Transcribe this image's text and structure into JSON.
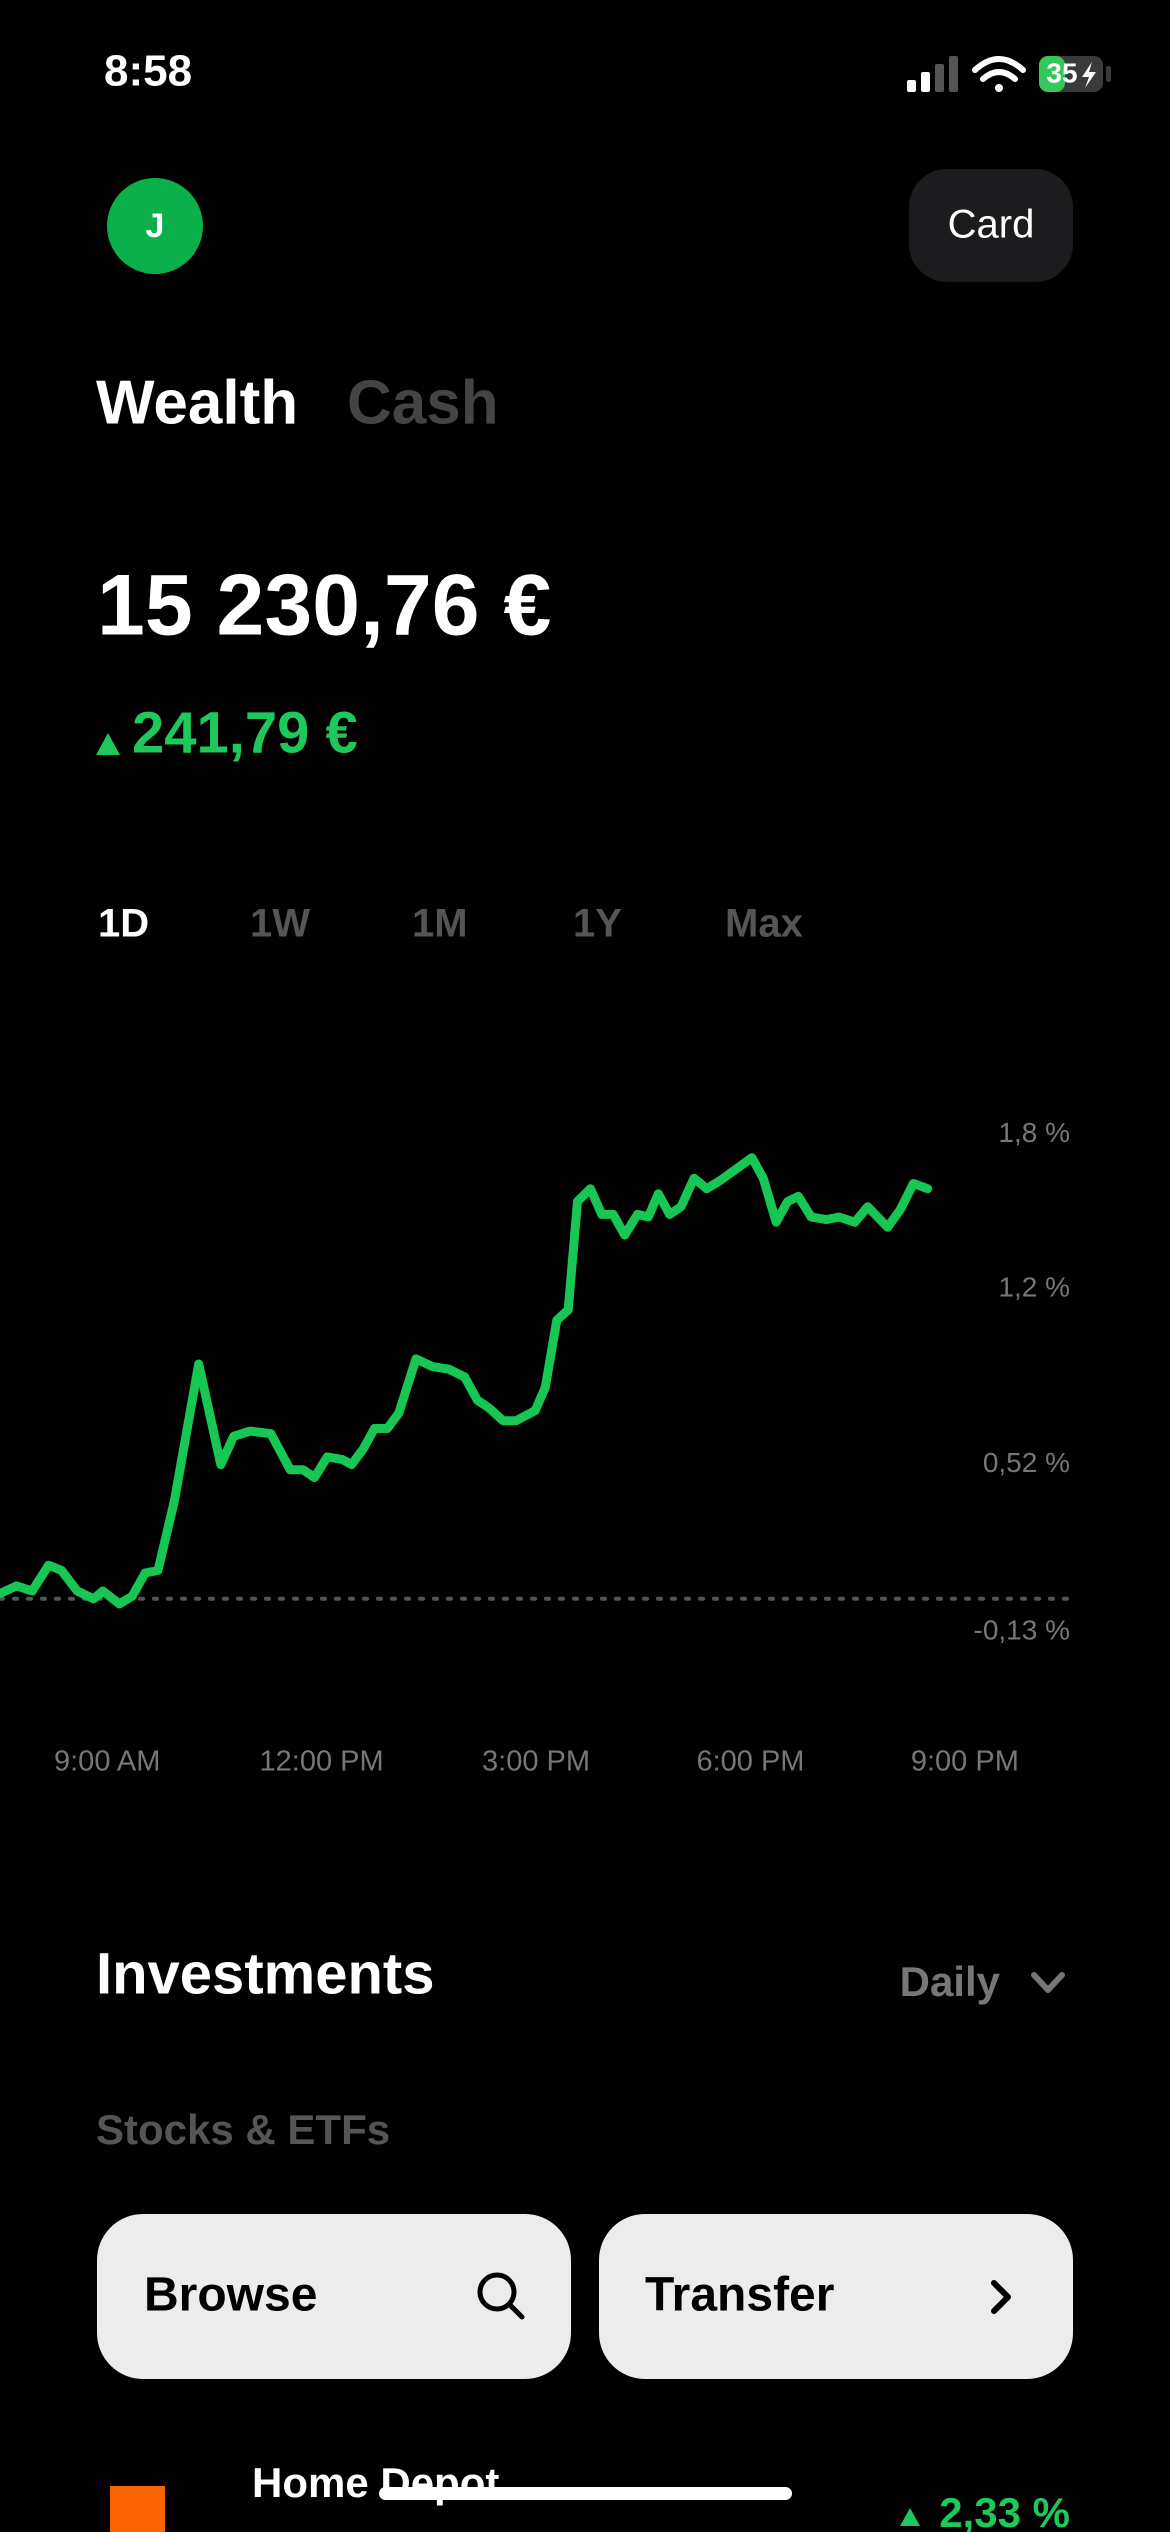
{
  "status_bar": {
    "time": "8:58",
    "battery": "35"
  },
  "header": {
    "avatar_initial": "J",
    "card_button": "Card"
  },
  "tabs": [
    "Wealth",
    "Cash"
  ],
  "balance": "15 230,76 €",
  "change": "241,79 €",
  "periods": [
    "1D",
    "1W",
    "1M",
    "1Y",
    "Max"
  ],
  "chart_data": {
    "type": "line",
    "color": "#17c653",
    "x": [
      7.5,
      7.73,
      7.95,
      8.18,
      8.36,
      8.58,
      8.81,
      8.94,
      9.17,
      9.35,
      9.53,
      9.71,
      9.94,
      10.28,
      10.59,
      10.77,
      11.0,
      11.29,
      11.56,
      11.74,
      11.9,
      12.08,
      12.29,
      12.42,
      12.58,
      12.74,
      12.92,
      13.08,
      13.32,
      13.55,
      13.78,
      14.0,
      14.18,
      14.34,
      14.54,
      14.72,
      14.99,
      15.13,
      15.29,
      15.45,
      15.58,
      15.76,
      15.92,
      16.08,
      16.24,
      16.42,
      16.57,
      16.71,
      16.87,
      17.03,
      17.21,
      17.39,
      17.57,
      17.77,
      18.02,
      18.18,
      18.36,
      18.52,
      18.67,
      18.85,
      19.06,
      19.24,
      19.46,
      19.64,
      19.92,
      20.1,
      20.28,
      20.48
    ],
    "values": [
      0.02,
      0.05,
      0.03,
      0.13,
      0.11,
      0.03,
      0.0,
      0.03,
      -0.02,
      0.01,
      0.1,
      0.11,
      0.38,
      0.91,
      0.52,
      0.63,
      0.65,
      0.64,
      0.5,
      0.5,
      0.47,
      0.55,
      0.54,
      0.52,
      0.58,
      0.66,
      0.66,
      0.72,
      0.93,
      0.9,
      0.89,
      0.86,
      0.77,
      0.74,
      0.69,
      0.69,
      0.73,
      0.82,
      1.08,
      1.12,
      1.54,
      1.59,
      1.49,
      1.49,
      1.41,
      1.49,
      1.48,
      1.57,
      1.49,
      1.52,
      1.63,
      1.59,
      1.62,
      1.66,
      1.71,
      1.63,
      1.46,
      1.54,
      1.56,
      1.48,
      1.47,
      1.48,
      1.46,
      1.52,
      1.44,
      1.51,
      1.61,
      1.59
    ],
    "xlim": [
      7.5,
      23.87
    ],
    "ylim": [
      -0.47,
      2.05
    ],
    "xticks": [
      {
        "value": 9,
        "label": "9:00 AM"
      },
      {
        "value": 12,
        "label": "12:00 PM"
      },
      {
        "value": 15,
        "label": "3:00 PM"
      },
      {
        "value": 18,
        "label": "6:00 PM"
      },
      {
        "value": 21,
        "label": "9:00 PM"
      }
    ],
    "yticks": [
      {
        "value": 1.8,
        "label": "1,8 %"
      },
      {
        "value": 1.2,
        "label": "1,2 %"
      },
      {
        "value": 0.52,
        "label": "0,52 %"
      },
      {
        "value": -0.13,
        "label": "-0,13 %"
      }
    ]
  },
  "investments": {
    "title": "Investments",
    "filter": "Daily",
    "section": "Stocks & ETFs",
    "buttons": [
      "Browse",
      "Transfer"
    ],
    "holdings": [
      {
        "name": "Home Depot",
        "change": "2,33 %"
      }
    ]
  }
}
